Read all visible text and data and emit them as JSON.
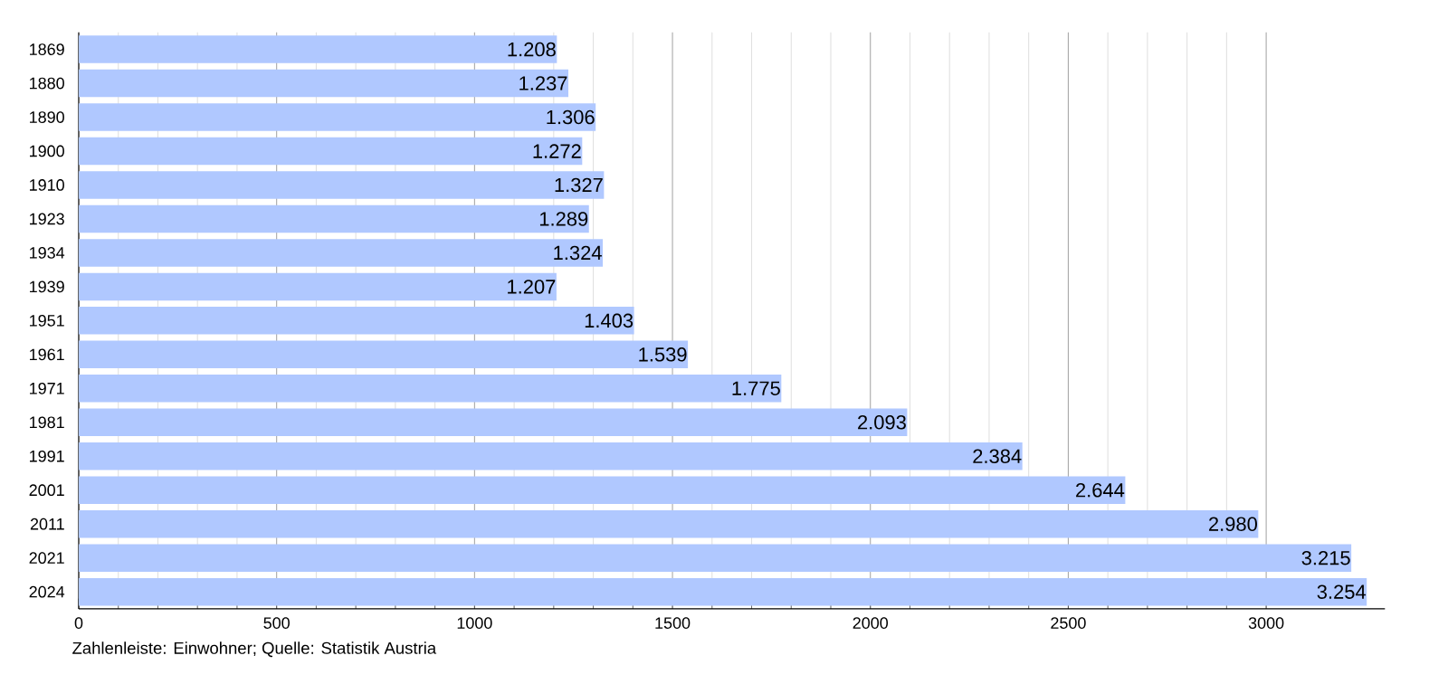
{
  "chart_data": {
    "type": "bar",
    "orientation": "horizontal",
    "categories": [
      "1869",
      "1880",
      "1890",
      "1900",
      "1910",
      "1923",
      "1934",
      "1939",
      "1951",
      "1961",
      "1971",
      "1981",
      "1991",
      "2001",
      "2011",
      "2021",
      "2024"
    ],
    "values": [
      1208,
      1237,
      1306,
      1272,
      1327,
      1289,
      1324,
      1207,
      1403,
      1539,
      1775,
      2093,
      2384,
      2644,
      2980,
      3215,
      3254
    ],
    "value_labels": [
      "1.208",
      "1.237",
      "1.306",
      "1.272",
      "1.327",
      "1.289",
      "1.324",
      "1.207",
      "1.403",
      "1.539",
      "1.775",
      "2.093",
      "2.384",
      "2.644",
      "2.980",
      "3.215",
      "3.254"
    ],
    "color": "#b0c8ff",
    "xlim": [
      0,
      3300
    ],
    "xticks": [
      0,
      500,
      1000,
      1500,
      2000,
      2500,
      3000
    ],
    "grid": "x",
    "annotations": [
      "Zahlenleiste: Einwohner; Quelle: Statistik Austria"
    ]
  }
}
